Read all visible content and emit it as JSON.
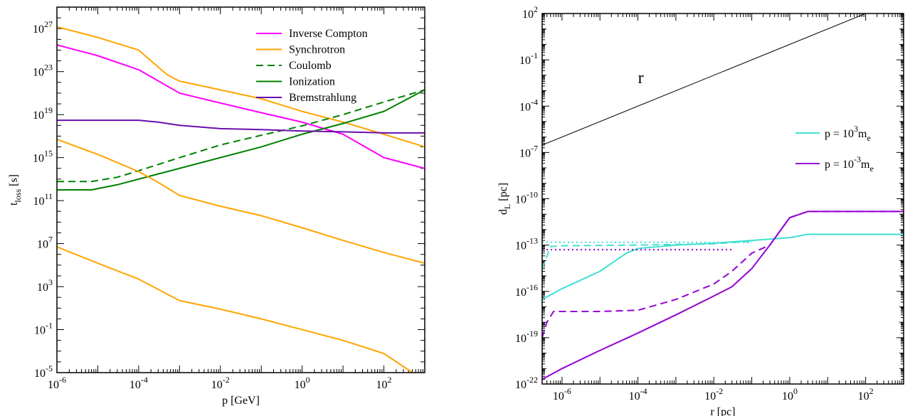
{
  "chart_data": [
    {
      "type": "line",
      "xlabel": "p [GeV]",
      "ylabel_main": "t",
      "ylabel_sub": "loss",
      "ylabel_unit": " [s]",
      "x_scale": "log",
      "y_scale": "log",
      "xlim": [
        1e-06,
        1000
      ],
      "ylim": [
        1e-05,
        1e+29
      ],
      "x_ticks": [
        {
          "mant": "10",
          "exp": "-6",
          "value": 1e-06
        },
        {
          "mant": "10",
          "exp": "-4",
          "value": 0.0001
        },
        {
          "mant": "10",
          "exp": "-2",
          "value": 0.01
        },
        {
          "mant": "10",
          "exp": "0",
          "value": 1
        },
        {
          "mant": "10",
          "exp": "2",
          "value": 100
        }
      ],
      "y_ticks": [
        {
          "mant": "10",
          "exp": "-5",
          "value": 1e-05
        },
        {
          "mant": "10",
          "exp": "-1",
          "value": 0.1
        },
        {
          "mant": "10",
          "exp": "3",
          "value": 1000.0
        },
        {
          "mant": "10",
          "exp": "7",
          "value": 10000000.0
        },
        {
          "mant": "10",
          "exp": "11",
          "value": 100000000000.0
        },
        {
          "mant": "10",
          "exp": "15",
          "value": 1000000000000000.0
        },
        {
          "mant": "10",
          "exp": "19",
          "value": 1e+19
        },
        {
          "mant": "10",
          "exp": "23",
          "value": 1e+23
        },
        {
          "mant": "10",
          "exp": "27",
          "value": 1e+27
        }
      ],
      "legend_position": "top-right",
      "series": [
        {
          "name": "Inverse Compton",
          "color": "#ff00ff",
          "dash": "solid",
          "in_legend": true,
          "points": [
            [
              1e-06,
              3e+25
            ],
            [
              1e-05,
              3e+24
            ],
            [
              0.0001,
              1.5e+23
            ],
            [
              0.001,
              1e+21
            ],
            [
              0.01,
              1.2e+20
            ],
            [
              0.1,
              1.5e+19
            ],
            [
              1,
              2e+18
            ],
            [
              10,
              1.5e+17
            ],
            [
              100,
              1000000000000000.0
            ],
            [
              1000,
              100000000000000.0
            ]
          ]
        },
        {
          "name": "Synchrotron",
          "color": "#ffa500",
          "dash": "solid",
          "in_legend": true,
          "points": [
            [
              1e-06,
              1.5e+27
            ],
            [
              1e-05,
              1.5e+26
            ],
            [
              0.0001,
              1e+25
            ],
            [
              0.0005,
              5e+22
            ],
            [
              0.001,
              1.3e+22
            ],
            [
              0.01,
              2e+21
            ],
            [
              0.1,
              3e+20
            ],
            [
              1,
              2e+19
            ],
            [
              10,
              2e+18
            ],
            [
              100,
              1.5e+17
            ],
            [
              1000,
              1e+16
            ]
          ]
        },
        {
          "name": "Coulomb",
          "color": "#008000",
          "dash": "dashed",
          "in_legend": true,
          "points": [
            [
              1e-06,
              6000000000000.0
            ],
            [
              7e-06,
              6000000000000.0
            ],
            [
              3e-05,
              15000000000000.0
            ],
            [
              0.0001,
              60000000000000.0
            ],
            [
              0.001,
              1000000000000000.0
            ],
            [
              0.01,
              1.5e+16
            ],
            [
              0.1,
              1.2e+17
            ],
            [
              1,
              9e+17
            ],
            [
              10,
              1e+19
            ],
            [
              100,
              1.5e+20
            ],
            [
              1000,
              2e+21
            ]
          ]
        },
        {
          "name": "Ionization",
          "color": "#008000",
          "dash": "solid",
          "in_legend": true,
          "points": [
            [
              1e-06,
              1000000000000.0
            ],
            [
              7e-06,
              1000000000000.0
            ],
            [
              3e-05,
              3000000000000.0
            ],
            [
              0.0001,
              10000000000000.0
            ],
            [
              0.001,
              100000000000000.0
            ],
            [
              0.01,
              1000000000000000.0
            ],
            [
              0.1,
              1e+16
            ],
            [
              1,
              1.5e+17
            ],
            [
              10,
              1.5e+18
            ],
            [
              100,
              2e+19
            ],
            [
              1000,
              2e+21
            ]
          ]
        },
        {
          "name": "Bremstrahlung",
          "color": "#6a0dad",
          "dash": "solid",
          "in_legend": true,
          "points": [
            [
              1e-06,
              3e+18
            ],
            [
              0.0001,
              3e+18
            ],
            [
              0.0003,
              2e+18
            ],
            [
              0.001,
              1e+18
            ],
            [
              0.01,
              5e+17
            ],
            [
              0.1,
              4e+17
            ],
            [
              1,
              3e+17
            ],
            [
              10,
              2.5e+17
            ],
            [
              100,
              2e+17
            ],
            [
              1000,
              2e+17
            ]
          ]
        },
        {
          "name": "",
          "color": "#ffa500",
          "dash": "solid",
          "in_legend": false,
          "points": [
            [
              1e-06,
              5e+16
            ],
            [
              1e-05,
              2000000000000000.0
            ],
            [
              0.0001,
              50000000000000.0
            ],
            [
              0.0003,
              5000000000000.0
            ],
            [
              0.001,
              300000000000.0
            ],
            [
              0.01,
              30000000000.0
            ],
            [
              0.1,
              4000000000.0
            ],
            [
              1,
              300000000.0
            ],
            [
              10,
              20000000.0
            ],
            [
              100,
              1500000.0
            ],
            [
              1000,
              150000.0
            ]
          ]
        },
        {
          "name": "",
          "color": "#ffa500",
          "dash": "solid",
          "in_legend": false,
          "points": [
            [
              1e-06,
              5000000.0
            ],
            [
              1e-05,
              150000.0
            ],
            [
              0.0001,
              5000.0
            ],
            [
              0.0005,
              200.0
            ],
            [
              0.001,
              50
            ],
            [
              0.01,
              8
            ],
            [
              0.1,
              1
            ],
            [
              1,
              0.1
            ],
            [
              10,
              0.01
            ],
            [
              100,
              0.0006
            ],
            [
              500,
              1e-05
            ]
          ]
        }
      ]
    },
    {
      "type": "line",
      "xlabel": "r [pc]",
      "ylabel_main": "d",
      "ylabel_sub": "L",
      "ylabel_unit": " [pc]",
      "x_scale": "log",
      "y_scale": "log",
      "xlim": [
        3e-07,
        1000
      ],
      "ylim": [
        1e-22,
        100
      ],
      "x_ticks": [
        {
          "mant": "10",
          "exp": "-6",
          "value": 1e-06
        },
        {
          "mant": "10",
          "exp": "-4",
          "value": 0.0001
        },
        {
          "mant": "10",
          "exp": "-2",
          "value": 0.01
        },
        {
          "mant": "10",
          "exp": "0",
          "value": 1
        },
        {
          "mant": "10",
          "exp": "2",
          "value": 100
        }
      ],
      "y_ticks": [
        {
          "mant": "10",
          "exp": "-22",
          "value": 1e-22
        },
        {
          "mant": "10",
          "exp": "-19",
          "value": 1e-19
        },
        {
          "mant": "10",
          "exp": "-16",
          "value": 1e-16
        },
        {
          "mant": "10",
          "exp": "-13",
          "value": 1e-13
        },
        {
          "mant": "10",
          "exp": "-10",
          "value": 1e-10
        },
        {
          "mant": "10",
          "exp": "-7",
          "value": 1e-07
        },
        {
          "mant": "10",
          "exp": "-4",
          "value": 0.0001
        },
        {
          "mant": "10",
          "exp": "-1",
          "value": 0.1
        },
        {
          "mant": "10",
          "exp": "2",
          "value": 100
        }
      ],
      "annotation": {
        "text": "r",
        "x": 0.0001,
        "y": 0.003
      },
      "legend_position": "right",
      "legend": [
        {
          "pre": "p = 10",
          "exp": "3",
          "post": "m",
          "sub": "e",
          "color": "#40e0d0"
        },
        {
          "pre": "p = 10",
          "exp": "-3",
          "post": "m",
          "sub": "e",
          "color": "#9400d3"
        }
      ],
      "series": [
        {
          "name": "",
          "color": "#000000",
          "dash": "solid",
          "points": [
            [
              3e-07,
              3e-07
            ],
            [
              1000,
              1000
            ]
          ]
        },
        {
          "name": "",
          "color": "#40e0d0",
          "dash": "solid",
          "points": [
            [
              3e-07,
              3e-17
            ],
            [
              1e-06,
              1.5e-16
            ],
            [
              1e-05,
              2e-15
            ],
            [
              5e-05,
              3e-14
            ],
            [
              0.0001,
              6e-14
            ],
            [
              0.001,
              1e-13
            ],
            [
              0.01,
              1.3e-13
            ],
            [
              0.1,
              2e-13
            ],
            [
              1,
              3e-13
            ],
            [
              3,
              5e-13
            ],
            [
              1000,
              5e-13
            ]
          ]
        },
        {
          "name": "",
          "color": "#40e0d0",
          "dash": "dashed",
          "points": [
            [
              3e-07,
              3e-15
            ],
            [
              5e-07,
              8e-14
            ],
            [
              1e-06,
              9e-14
            ],
            [
              0.0001,
              1e-13
            ],
            [
              0.001,
              1.1e-13
            ],
            [
              0.01,
              1.2e-13
            ],
            [
              0.1,
              1.8e-13
            ]
          ]
        },
        {
          "name": "",
          "color": "#40e0d0",
          "dash": "dotted",
          "points": [
            [
              3e-07,
              1.5e-13
            ],
            [
              0.1,
              1.5e-13
            ]
          ]
        },
        {
          "name": "",
          "color": "#9400d3",
          "dash": "solid",
          "points": [
            [
              3e-07,
              2e-22
            ],
            [
              1e-06,
              1e-21
            ],
            [
              1e-05,
              1.5e-20
            ],
            [
              0.0001,
              2e-19
            ],
            [
              0.001,
              3e-18
            ],
            [
              0.01,
              5e-17
            ],
            [
              0.03,
              2e-16
            ],
            [
              0.1,
              3e-15
            ],
            [
              0.3,
              1e-13
            ],
            [
              1,
              6e-12
            ],
            [
              3,
              1.5e-11
            ],
            [
              1000,
              1.5e-11
            ]
          ]
        },
        {
          "name": "",
          "color": "#9400d3",
          "dash": "dashed",
          "points": [
            [
              3e-07,
              1e-19
            ],
            [
              4e-07,
              1e-18
            ],
            [
              6e-07,
              5e-18
            ],
            [
              1e-06,
              5e-18
            ],
            [
              1e-05,
              5e-18
            ],
            [
              0.0001,
              6e-18
            ],
            [
              0.001,
              3e-17
            ],
            [
              0.01,
              3e-16
            ],
            [
              0.03,
              2e-15
            ],
            [
              0.1,
              3e-14
            ],
            [
              0.3,
              1e-13
            ],
            [
              1,
              6e-12
            ],
            [
              3,
              1.5e-11
            ],
            [
              1000,
              1.5e-11
            ]
          ]
        },
        {
          "name": "",
          "color": "#9400d3",
          "dash": "dotted",
          "points": [
            [
              3e-07,
              5e-14
            ],
            [
              0.03,
              5e-14
            ]
          ]
        }
      ]
    }
  ]
}
